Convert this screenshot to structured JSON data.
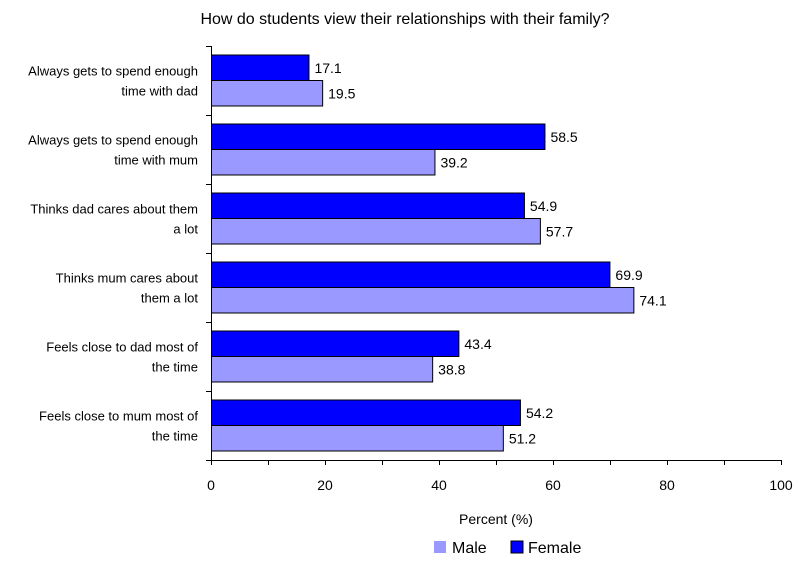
{
  "chart_data": {
    "type": "bar",
    "orientation": "horizontal",
    "title": "How do students view their relationships with their family?",
    "xlabel": "Percent (%)",
    "ylabel": "",
    "xlim": [
      0,
      100
    ],
    "xticks": [
      0,
      20,
      40,
      60,
      80,
      100
    ],
    "grid": false,
    "legend_position": "bottom",
    "categories": [
      [
        "Always gets to spend enough",
        "time with dad"
      ],
      [
        "Always gets to spend enough",
        "time with mum"
      ],
      [
        "Thinks dad cares about them",
        "a lot"
      ],
      [
        "Thinks mum cares about",
        "them a lot"
      ],
      [
        "Feels close to dad most of",
        "the time"
      ],
      [
        "Feels close to mum most of",
        "the time"
      ]
    ],
    "series": [
      {
        "name": "Female",
        "color": "#0000ff",
        "values": [
          17.1,
          58.5,
          54.9,
          69.9,
          43.4,
          54.2
        ]
      },
      {
        "name": "Male",
        "color": "#9999ff",
        "values": [
          19.5,
          39.2,
          57.7,
          74.1,
          38.8,
          51.2
        ]
      }
    ],
    "legend_order": [
      "Male",
      "Female"
    ]
  }
}
